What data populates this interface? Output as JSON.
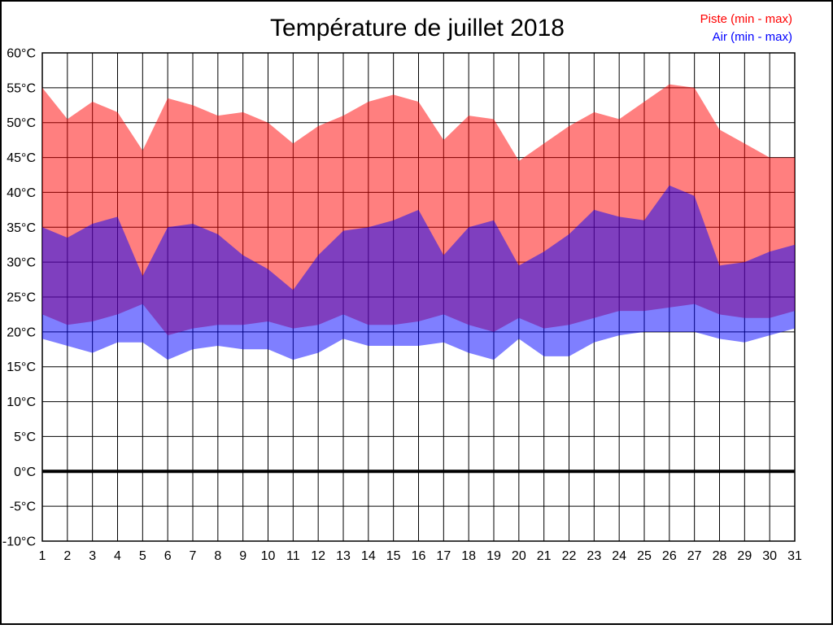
{
  "chart_data": {
    "type": "area",
    "title": "Température de juillet 2018",
    "xlabel": "",
    "ylabel": "",
    "grid": true,
    "legend_position": "top-right",
    "zero_line": true,
    "ylim": [
      -10,
      60
    ],
    "ytick_step": 5,
    "x": [
      1,
      2,
      3,
      4,
      5,
      6,
      7,
      8,
      9,
      10,
      11,
      12,
      13,
      14,
      15,
      16,
      17,
      18,
      19,
      20,
      21,
      22,
      23,
      24,
      25,
      26,
      27,
      28,
      29,
      30,
      31
    ],
    "yticks": [
      {
        "value": 60,
        "label": "60°C"
      },
      {
        "value": 55,
        "label": "55°C"
      },
      {
        "value": 50,
        "label": "50°C"
      },
      {
        "value": 45,
        "label": "45°C"
      },
      {
        "value": 40,
        "label": "40°C"
      },
      {
        "value": 35,
        "label": "35°C"
      },
      {
        "value": 30,
        "label": "30°C"
      },
      {
        "value": 25,
        "label": "25°C"
      },
      {
        "value": 20,
        "label": "20°C"
      },
      {
        "value": 15,
        "label": "15°C"
      },
      {
        "value": 10,
        "label": "10°C"
      },
      {
        "value": 5,
        "label": "5°C"
      },
      {
        "value": 0,
        "label": "0°C"
      },
      {
        "value": -5,
        "label": "-5°C"
      },
      {
        "value": -10,
        "label": "-10°C"
      }
    ],
    "series": [
      {
        "id": "piste",
        "name": "Piste (min - max)",
        "legend_color": "#ff0000",
        "fill": "rgba(255,0,0,0.5)",
        "max": [
          55,
          50.5,
          53,
          51.5,
          46,
          53.5,
          52.5,
          51,
          51.5,
          50,
          47,
          49.5,
          51,
          53,
          54,
          53,
          47.5,
          51,
          50.5,
          44.5,
          47,
          49.5,
          51.5,
          50.5,
          53,
          55.5,
          55,
          49,
          47,
          45,
          45
        ],
        "min": [
          22.5,
          21,
          21.5,
          22.5,
          24,
          19.5,
          20.5,
          21,
          21,
          21.5,
          20.5,
          21,
          22.5,
          21,
          21,
          21.5,
          22.5,
          21,
          20,
          22,
          20.5,
          21,
          22,
          23,
          23,
          23.5,
          24,
          22.5,
          22,
          22,
          23
        ]
      },
      {
        "id": "air",
        "name": "Air (min - max)",
        "legend_color": "#0000ff",
        "fill": "rgba(0,0,255,0.5)",
        "max": [
          35,
          33.5,
          35.5,
          36.5,
          28,
          35,
          35.5,
          34,
          31,
          29,
          26,
          31,
          34.5,
          35,
          36,
          37.5,
          31,
          35,
          36,
          29.5,
          31.5,
          34,
          37.5,
          36.5,
          36,
          41,
          39.5,
          29.5,
          30,
          31.5,
          32.5
        ],
        "min": [
          19,
          18,
          17,
          18.5,
          18.5,
          16,
          17.5,
          18,
          17.5,
          17.5,
          16,
          17,
          19,
          18,
          18,
          18,
          18.5,
          17,
          16,
          19,
          16.5,
          16.5,
          18.5,
          19.5,
          20,
          20,
          20,
          19,
          18.5,
          19.5,
          20.5
        ]
      }
    ]
  }
}
